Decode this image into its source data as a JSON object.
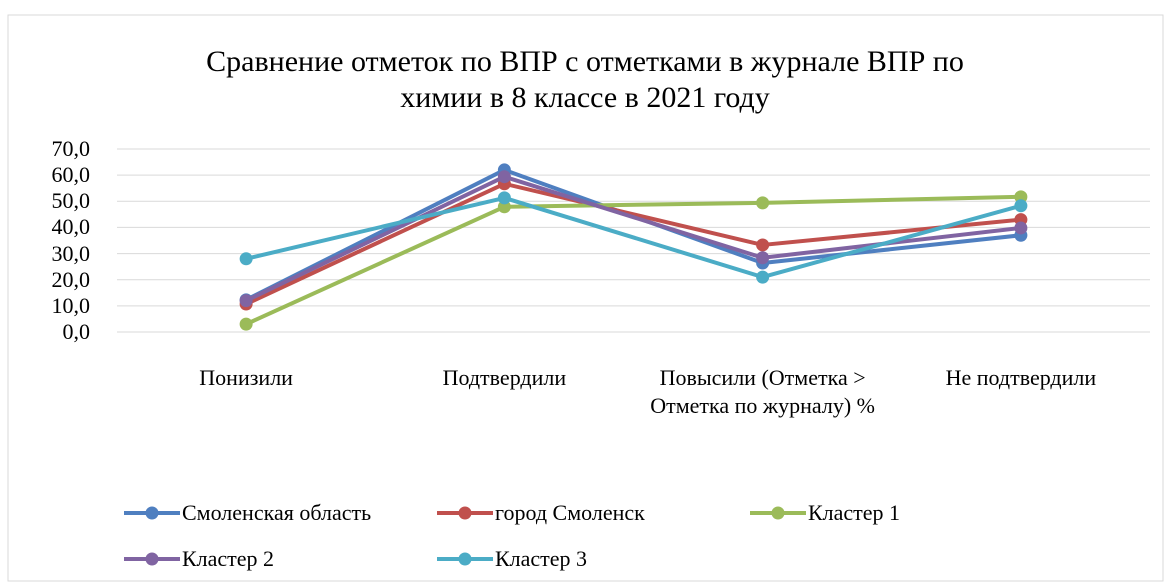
{
  "chart_data": {
    "type": "line",
    "title": "Сравнение отметок по ВПР с отметками в журнале ВПР по химии в 8 классе в 2021 году",
    "categories": [
      "Понизили",
      "Подтвердили",
      "Повысили (Отметка > Отметка по журналу) %",
      "Не подтвердили"
    ],
    "series": [
      {
        "name": "Смоленская область",
        "color": "#4f7fc0",
        "values": [
          12.3,
          62.0,
          26.4,
          37.0
        ]
      },
      {
        "name": "город Смоленск",
        "color": "#c0504d",
        "values": [
          10.7,
          56.7,
          33.3,
          43.0
        ]
      },
      {
        "name": "Кластер 1",
        "color": "#9bbb59",
        "values": [
          3.0,
          47.9,
          49.4,
          51.7
        ]
      },
      {
        "name": "Кластер 2",
        "color": "#8064a2",
        "values": [
          12.0,
          59.4,
          28.4,
          39.8
        ]
      },
      {
        "name": "Кластер 3",
        "color": "#4bacc6",
        "values": [
          28.0,
          51.3,
          21.0,
          48.3
        ]
      }
    ],
    "ylim": [
      0,
      70
    ],
    "yticks": [
      {
        "value": 0,
        "label": "0,0"
      },
      {
        "value": 10,
        "label": "10,0"
      },
      {
        "value": 20,
        "label": "20,0"
      },
      {
        "value": 30,
        "label": "30,0"
      },
      {
        "value": 40,
        "label": "40,0"
      },
      {
        "value": 50,
        "label": "50,0"
      },
      {
        "value": 60,
        "label": "60,0"
      },
      {
        "value": 70,
        "label": "70,0"
      }
    ],
    "grid": true,
    "legend": "bottom"
  }
}
